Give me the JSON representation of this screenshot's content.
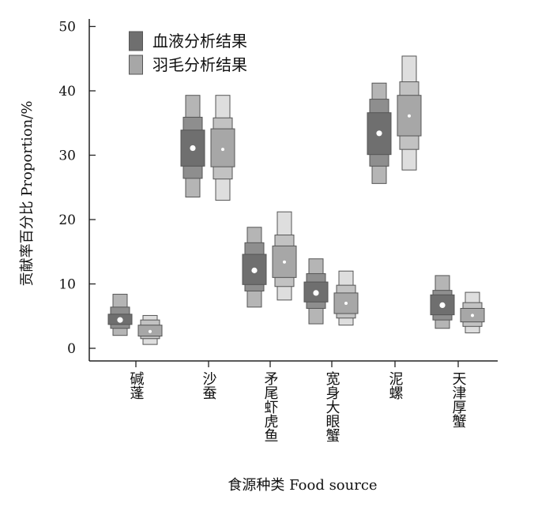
{
  "chart_data": {
    "type": "boxen",
    "title": "",
    "xlabel": "食源种类 Food source",
    "ylabel": "贡献率百分比 Proportion/%",
    "ylim": [
      -2,
      52
    ],
    "yticks": [
      0,
      10,
      20,
      30,
      40,
      50
    ],
    "categories": [
      "碱蓬",
      "沙蚕",
      "矛尾虾虎鱼",
      "宽身大眼蟹",
      "泥螺",
      "天津厚蟹"
    ],
    "grid": false,
    "legend_position": "top-left",
    "series": [
      {
        "name": "血液分析结果",
        "color": "#7f7f7f",
        "medians": [
          4.4,
          31.1,
          12.1,
          8.6,
          33.4,
          6.7
        ],
        "levels": [
          [
            [
              3.7,
              5.3
            ],
            [
              3.1,
              6.4
            ],
            [
              2.0,
              8.4
            ]
          ],
          [
            [
              28.3,
              33.9
            ],
            [
              26.4,
              35.9
            ],
            [
              23.5,
              39.3
            ]
          ],
          [
            [
              9.9,
              14.6
            ],
            [
              8.9,
              16.4
            ],
            [
              6.4,
              18.8
            ]
          ],
          [
            [
              7.2,
              10.3
            ],
            [
              6.2,
              11.6
            ],
            [
              3.8,
              13.9
            ]
          ],
          [
            [
              30.1,
              36.6
            ],
            [
              28.3,
              38.7
            ],
            [
              25.6,
              41.2
            ]
          ],
          [
            [
              5.2,
              8.3
            ],
            [
              4.4,
              9.0
            ],
            [
              3.1,
              11.3
            ]
          ]
        ]
      },
      {
        "name": "羽毛分析结果",
        "color": "#adadad",
        "medians": [
          2.6,
          30.9,
          13.4,
          7.0,
          36.1,
          5.1
        ],
        "levels": [
          [
            [
              1.9,
              3.6
            ],
            [
              1.5,
              4.4
            ],
            [
              0.6,
              5.1
            ]
          ],
          [
            [
              28.2,
              34.1
            ],
            [
              26.3,
              35.8
            ],
            [
              23.0,
              39.3
            ]
          ],
          [
            [
              11.0,
              15.9
            ],
            [
              9.6,
              17.6
            ],
            [
              7.5,
              21.2
            ]
          ],
          [
            [
              5.4,
              8.6
            ],
            [
              4.7,
              9.8
            ],
            [
              3.6,
              12.0
            ]
          ],
          [
            [
              33.0,
              39.3
            ],
            [
              30.9,
              41.4
            ],
            [
              27.7,
              45.4
            ]
          ],
          [
            [
              4.1,
              6.2
            ],
            [
              3.4,
              7.1
            ],
            [
              2.4,
              8.7
            ]
          ]
        ]
      }
    ]
  }
}
